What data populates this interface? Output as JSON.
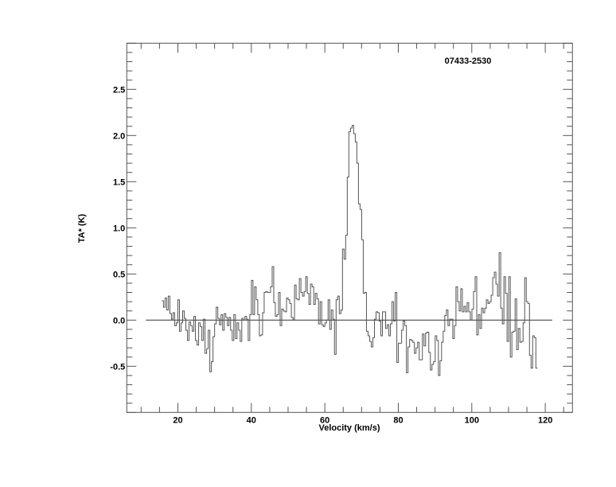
{
  "chart_data": {
    "type": "line",
    "style": "histogram-step",
    "title": "07433-2530",
    "xlabel": "Velocity (km/s)",
    "ylabel": "TA* (K)",
    "xlim": [
      6.1,
      127.4
    ],
    "ylim": [
      -1.0,
      3.0
    ],
    "x_ticks": [
      20,
      40,
      60,
      80,
      100,
      120
    ],
    "x_minor_step": 5,
    "y_ticks": [
      -0.5,
      0.0,
      0.5,
      1.0,
      1.5,
      2.0,
      2.5
    ],
    "y_tick_labels": [
      "-0.5",
      "0.0",
      "0.5",
      "1.0",
      "1.5",
      "2.0",
      "2.5"
    ],
    "y_minor_step": 0.1,
    "grid": false,
    "baseline": {
      "y": 0.0,
      "x_range": [
        11.3,
        121.9
      ]
    },
    "line_color": "#555555",
    "velocity_channels": {
      "start": 15.65,
      "step": 0.435
    },
    "values": [
      0.21,
      0.14,
      0.24,
      0.11,
      0.26,
      0.07,
      0.01,
      0.08,
      -0.06,
      -0.03,
      0.22,
      -0.12,
      -0.03,
      0.1,
      0.02,
      -0.11,
      -0.22,
      -0.02,
      -0.06,
      -0.12,
      0.04,
      -0.22,
      -0.27,
      -0.03,
      -0.07,
      -0.22,
      0.01,
      -0.36,
      -0.31,
      -0.11,
      -0.56,
      -0.45,
      -0.18,
      -0.04,
      0.14,
      0.02,
      -0.05,
      0.06,
      -0.11,
      0.07,
      0.03,
      -0.06,
      0.03,
      -0.11,
      -0.22,
      0.06,
      -0.2,
      -0.03,
      -0.11,
      -0.23,
      0.02,
      0.0,
      0.04,
      0.01,
      -0.22,
      0.06,
      0.43,
      0.06,
      0.36,
      0.22,
      0.06,
      -0.17,
      -0.16,
      0.08,
      0.3,
      0.31,
      0.3,
      0.3,
      0.36,
      0.58,
      0.19,
      0.04,
      0.06,
      0.3,
      -0.06,
      0.12,
      0.1,
      0.09,
      0.24,
      0.22,
      0.18,
      0.03,
      0.01,
      0.38,
      0.23,
      0.22,
      0.45,
      0.3,
      0.26,
      0.31,
      0.47,
      0.29,
      0.17,
      0.39,
      0.36,
      0.17,
      0.29,
      0.23,
      -0.04,
      0.2,
      -0.05,
      -0.07,
      -0.03,
      0.0,
      0.22,
      -0.1,
      0.11,
      0.01,
      -0.37,
      0.22,
      0.26,
      0.07,
      0.11,
      0.77,
      0.66,
      0.92,
      1.55,
      2.04,
      2.08,
      2.11,
      2.02,
      1.93,
      1.7,
      1.26,
      1.2,
      0.87,
      0.29,
      0.3,
      -0.12,
      -0.17,
      -0.23,
      -0.29,
      -0.19,
      0.01,
      0.09,
      0.08,
      -0.01,
      -0.17,
      0.09,
      0.09,
      -0.09,
      -0.05,
      -0.17,
      -0.04,
      0.2,
      -0.01,
      0.3,
      -0.46,
      -0.25,
      -0.25,
      -0.11,
      -0.01,
      -0.06,
      -0.57,
      -0.29,
      -0.21,
      -0.22,
      -0.24,
      -0.36,
      -0.3,
      -0.24,
      -0.43,
      -0.43,
      -0.15,
      -0.28,
      -0.14,
      -0.13,
      -0.35,
      -0.54,
      -0.48,
      -0.45,
      -0.17,
      -0.22,
      -0.6,
      -0.44,
      -0.24,
      -0.12,
      0.05,
      0.11,
      -0.06,
      0.01,
      0.01,
      -0.2,
      -0.06,
      0.36,
      0.2,
      0.1,
      0.34,
      0.09,
      0.15,
      0.09,
      0.19,
      0.09,
      0.0,
      0.12,
      0.31,
      0.47,
      -0.16,
      0.06,
      -0.09,
      0.13,
      0.08,
      0.13,
      0.22,
      0.18,
      0.2,
      0.27,
      0.46,
      0.52,
      0.39,
      0.26,
      0.73,
      0.13,
      -0.04,
      0.47,
      0.29,
      -0.23,
      0.47,
      -0.4,
      -0.13,
      -0.12,
      0.23,
      -0.32,
      -0.09,
      -0.24,
      -0.23,
      -0.03,
      0.46,
      0.2,
      0.18,
      -0.38,
      -0.52,
      -0.17,
      -0.19,
      -0.52
    ]
  }
}
